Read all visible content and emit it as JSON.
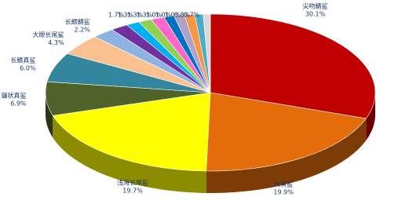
{
  "chart_data": {
    "type": "pie3d",
    "categories": [
      "尖吻鲭鲨",
      "大青鲨",
      "浅海长尾鲨",
      "镰状真鲨",
      "长鳍真鲨",
      "大眼长尾鲨",
      "长鳍鲭鲨",
      null,
      null,
      null,
      null,
      null,
      null,
      null,
      null,
      null
    ],
    "values": [
      30.1,
      19.9,
      19.7,
      6.9,
      6.0,
      4.3,
      2.2,
      1.7,
      1.3,
      1.3,
      1.3,
      1.0,
      1.0,
      1.0,
      0.8,
      0.7
    ],
    "value_labels": [
      "30.1%",
      "19.9%",
      "19.7%",
      "6.9%",
      "6.0%",
      "4.3%",
      "2.2%",
      "1.7%",
      "1.3%",
      "1.3%",
      "1.3%",
      "1.0%",
      "1.0%",
      "1.0%",
      "0.8%",
      "0.7%"
    ],
    "colors": [
      "#c00000",
      "#e46c0a",
      "#ffff00",
      "#4f6228",
      "#31859c",
      "#fac090",
      "#8db3e2",
      "#7030a0",
      "#00b0f0",
      "#92d050",
      "#ff66cc",
      "#0070c0",
      "#b2a1c7",
      "#f79646",
      "#4bacc6",
      "#d9d9d9"
    ]
  }
}
